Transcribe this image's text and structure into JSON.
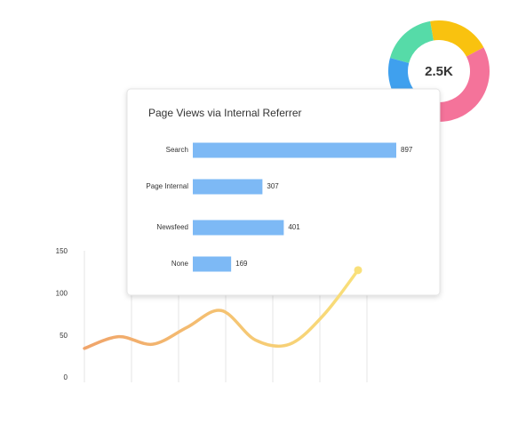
{
  "chart_data": [
    {
      "type": "donut",
      "center_label": "2.5K",
      "values": [
        20,
        40,
        22,
        18
      ],
      "colors": [
        "#f9c20f",
        "#f4739a",
        "#3fa0ee",
        "#56dba8"
      ]
    },
    {
      "type": "hbar",
      "title": "Page Views via Internal Referrer",
      "categories": [
        "Search",
        "Page Internal",
        "Newsfeed",
        "None"
      ],
      "values": [
        897,
        307,
        401,
        169
      ],
      "color": "#7db9f5"
    },
    {
      "type": "line",
      "values": [
        35,
        49,
        40,
        60,
        80,
        45,
        40,
        75,
        128
      ],
      "colors": [
        "#f0a46a",
        "#f9e07a"
      ],
      "ylim": [
        0,
        150
      ],
      "yticks": [
        0,
        50,
        100,
        150
      ]
    }
  ]
}
